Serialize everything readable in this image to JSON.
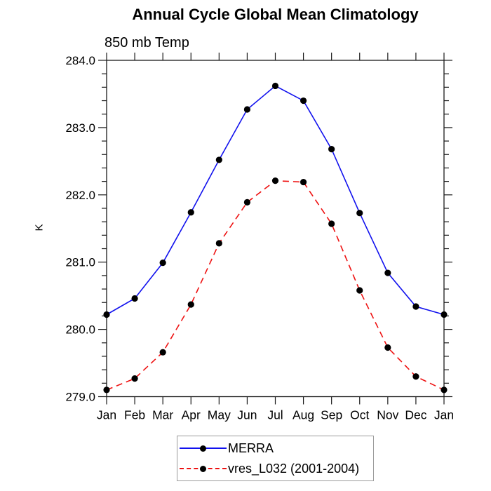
{
  "title": "Annual Cycle Global Mean Climatology",
  "subtitle": "850 mb Temp",
  "y_axis_label": "K",
  "colors": {
    "merra_line": "#1111ee",
    "vres_line": "#ee1111",
    "marker": "#000000",
    "axis": "#1a1a1a",
    "legend_border": "#9b9b9b"
  },
  "legend": {
    "position": "bottom-center",
    "items": [
      {
        "label": "MERRA",
        "line_style": "solid",
        "marker": "black-circle"
      },
      {
        "label": "vres_L032 (2001-2004)",
        "line_style": "dashed",
        "marker": "black-circle"
      }
    ]
  },
  "chart_data": {
    "type": "line",
    "title": "Annual Cycle Global Mean Climatology",
    "subtitle": "850 mb Temp",
    "xlabel": "",
    "ylabel": "K",
    "x_tick_labels": [
      "Jan",
      "Feb",
      "Mar",
      "Apr",
      "May",
      "Jun",
      "Jul",
      "Aug",
      "Sep",
      "Oct",
      "Nov",
      "Dec",
      "Jan"
    ],
    "ylim": [
      279.0,
      284.0
    ],
    "y_major_tick_interval": 1.0,
    "y_minor_tick_interval": 0.2,
    "y_tick_label_format": "one-decimal",
    "grid": false,
    "frame": "box-with-mirrored-outward-ticks",
    "legend_position": "bottom-center",
    "series": [
      {
        "name": "MERRA",
        "color": "#1111ee",
        "style": "solid",
        "marker": "black-circle",
        "values": [
          280.22,
          280.46,
          280.99,
          281.74,
          282.52,
          283.27,
          283.62,
          283.4,
          282.68,
          281.73,
          280.84,
          280.34,
          280.22
        ]
      },
      {
        "name": "vres_L032 (2001-2004)",
        "color": "#ee1111",
        "style": "dashed",
        "marker": "black-circle",
        "values": [
          279.1,
          279.27,
          279.66,
          280.37,
          281.28,
          281.89,
          282.21,
          282.19,
          281.57,
          280.58,
          279.73,
          279.3,
          279.1
        ]
      }
    ]
  }
}
